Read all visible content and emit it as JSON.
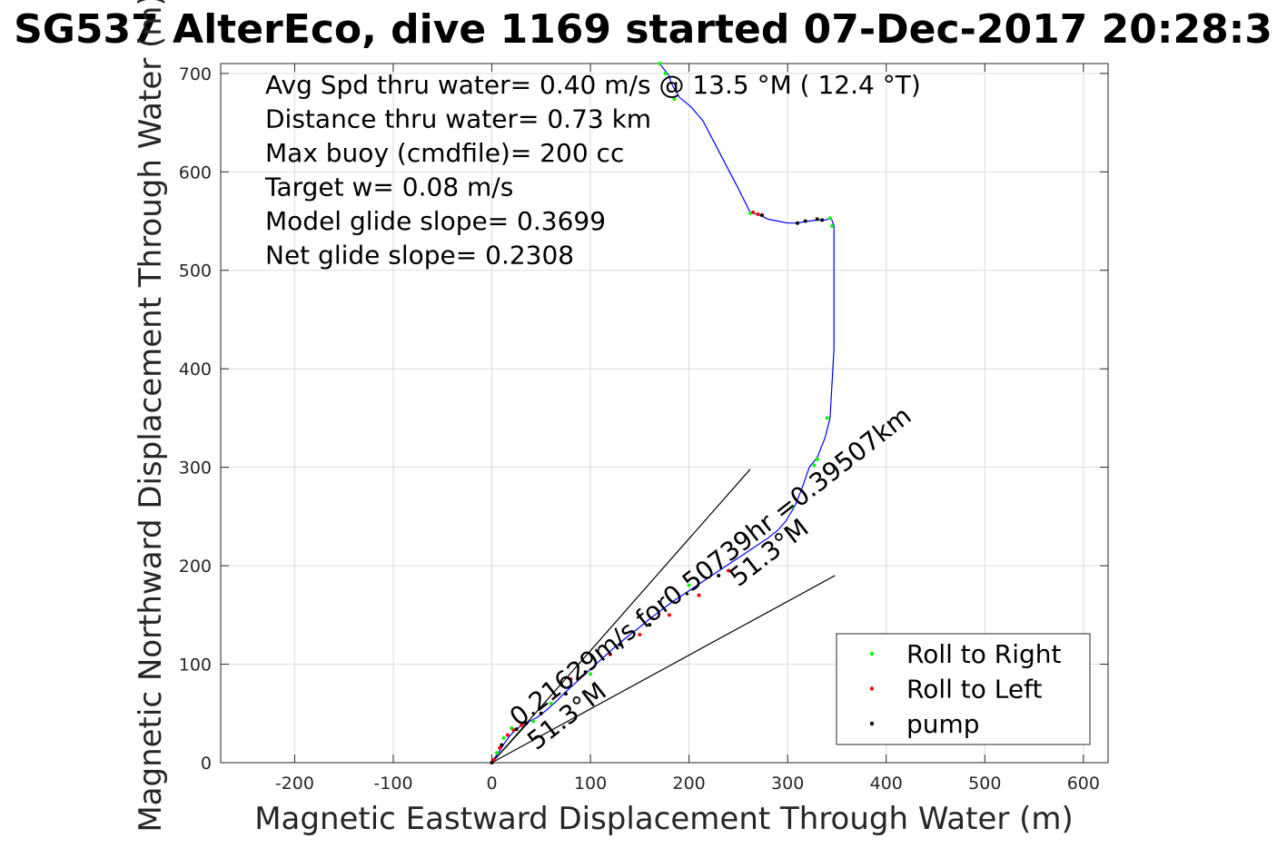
{
  "chart_data": {
    "type": "line",
    "title": "SG537 AlterEco, dive 1169 started 07-Dec-2017 20:28:3",
    "xlabel": "Magnetic Eastward Displacement Through Water (m)",
    "ylabel": "Magnetic Northward Displacement Through Water (m)",
    "xlim": [
      -275,
      625
    ],
    "ylim": [
      0,
      710
    ],
    "xticks": [
      -200,
      -100,
      0,
      100,
      200,
      300,
      400,
      500,
      600
    ],
    "yticks": [
      0,
      100,
      200,
      300,
      400,
      500,
      600,
      700
    ],
    "grid": true,
    "info_lines": [
      "Avg Spd thru water=  0.40 m/s @  13.5 °M ( 12.4 °T)",
      "Distance thru water=  0.73 km",
      "Max buoy (cmdfile)= 200 cc",
      "Target w= 0.08 m/s",
      "Model glide slope= 0.3699",
      "Net glide slope= 0.2308"
    ],
    "track": {
      "color": "#0000ff",
      "x": [
        0,
        3,
        8,
        13,
        18,
        24,
        30,
        38,
        46,
        55,
        65,
        75,
        86,
        98,
        110,
        122,
        135,
        148,
        160,
        172,
        184,
        196,
        208,
        220,
        232,
        244,
        256,
        268,
        280,
        290,
        298,
        304,
        308,
        315,
        322,
        330,
        338,
        343,
        347,
        347,
        345,
        343,
        338,
        330,
        322,
        315,
        308,
        300,
        290,
        280,
        274,
        268,
        262,
        250,
        238,
        226,
        214,
        202,
        190,
        182,
        180,
        178,
        174,
        170
      ],
      "y": [
        0,
        5,
        12,
        20,
        27,
        33,
        38,
        42,
        46,
        53,
        62,
        72,
        82,
        93,
        104,
        115,
        126,
        136,
        146,
        155,
        164,
        172,
        180,
        188,
        196,
        204,
        212,
        220,
        228,
        236,
        245,
        255,
        262,
        280,
        300,
        310,
        330,
        350,
        420,
        545,
        551,
        553,
        551,
        551,
        550,
        549,
        548,
        548,
        550,
        552,
        555,
        557,
        559,
        583,
        606,
        629,
        652,
        666,
        676,
        690,
        697,
        700,
        705,
        710
      ]
    },
    "series": [
      {
        "name": "Roll to Right",
        "color": "#00ff00",
        "x": [
          5,
          12,
          20,
          42,
          60,
          100,
          200,
          305,
          327,
          330,
          340,
          345,
          343,
          262,
          185,
          170,
          176
        ],
        "y": [
          10,
          25,
          35,
          42,
          60,
          90,
          180,
          260,
          302,
          308,
          350,
          545,
          553,
          558,
          674,
          710,
          700
        ]
      },
      {
        "name": "Roll to Left",
        "color": "#ff0000",
        "x": [
          2,
          8,
          16,
          22,
          30,
          80,
          120,
          150,
          180,
          210,
          240,
          265,
          270
        ],
        "y": [
          3,
          15,
          28,
          33,
          38,
          85,
          110,
          130,
          150,
          170,
          195,
          559,
          557
        ]
      },
      {
        "name": "pump",
        "color": "#000000",
        "x": [
          0,
          10,
          25,
          35,
          50,
          75,
          95,
          130,
          160,
          230,
          274,
          310,
          318,
          330,
          335
        ],
        "y": [
          0,
          18,
          34,
          40,
          50,
          70,
          92,
          120,
          140,
          190,
          556,
          548,
          550,
          552,
          551
        ]
      }
    ],
    "fan_lines": [
      {
        "x": [
          0,
          262
        ],
        "y": [
          0,
          298
        ]
      },
      {
        "x": [
          0,
          348
        ],
        "y": [
          0,
          190
        ]
      },
      {
        "x": [
          0,
          38
        ],
        "y": [
          0,
          42
        ]
      }
    ],
    "annotations": [
      {
        "text": "0.21629m/s for0.50739hr =0.39507km",
        "x": 27,
        "y": 36,
        "angle": -38
      },
      {
        "text": "51.3°M",
        "x": 45,
        "y": 12,
        "angle": -38
      },
      {
        "text": "51.3°M",
        "x": 250,
        "y": 178,
        "angle": -38
      }
    ],
    "legend": {
      "location": "bottom-right",
      "entries": [
        "Roll to Right",
        "Roll to Left",
        "pump"
      ],
      "colors": [
        "#00ff00",
        "#ff0000",
        "#000000"
      ]
    }
  }
}
